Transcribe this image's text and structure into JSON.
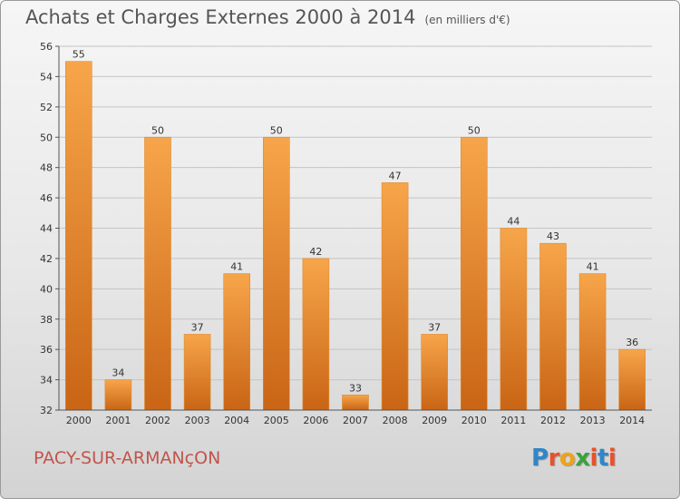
{
  "header": {
    "title": "Achats et Charges Externes 2000 à 2014",
    "unit": "(en milliers d'€)"
  },
  "footer": {
    "commune": "PACY-SUR-ARMANçON",
    "logo": "Proxiti",
    "logo_colors": [
      "#2f86c9",
      "#e8522b",
      "#f0a21a",
      "#3aa43a",
      "#e8522b",
      "#2f86c9",
      "#e8522b"
    ]
  },
  "colors": {
    "bar_light": "#f7a54a",
    "bar_dark": "#c96515",
    "grid": "#c4c4c4"
  },
  "chart_data": {
    "type": "bar",
    "title": "Achats et Charges Externes 2000 à 2014",
    "subtitle": "(en milliers d'€)",
    "categories": [
      "2000",
      "2001",
      "2002",
      "2003",
      "2004",
      "2005",
      "2006",
      "2007",
      "2008",
      "2009",
      "2010",
      "2011",
      "2012",
      "2013",
      "2014"
    ],
    "values": [
      55,
      34,
      50,
      37,
      41,
      50,
      42,
      33,
      47,
      37,
      50,
      44,
      43,
      41,
      36
    ],
    "ylim": [
      32,
      56
    ],
    "yticks": [
      32,
      34,
      36,
      38,
      40,
      42,
      44,
      46,
      48,
      50,
      52,
      54,
      56
    ],
    "grid": true,
    "xlabel": "",
    "ylabel": ""
  }
}
